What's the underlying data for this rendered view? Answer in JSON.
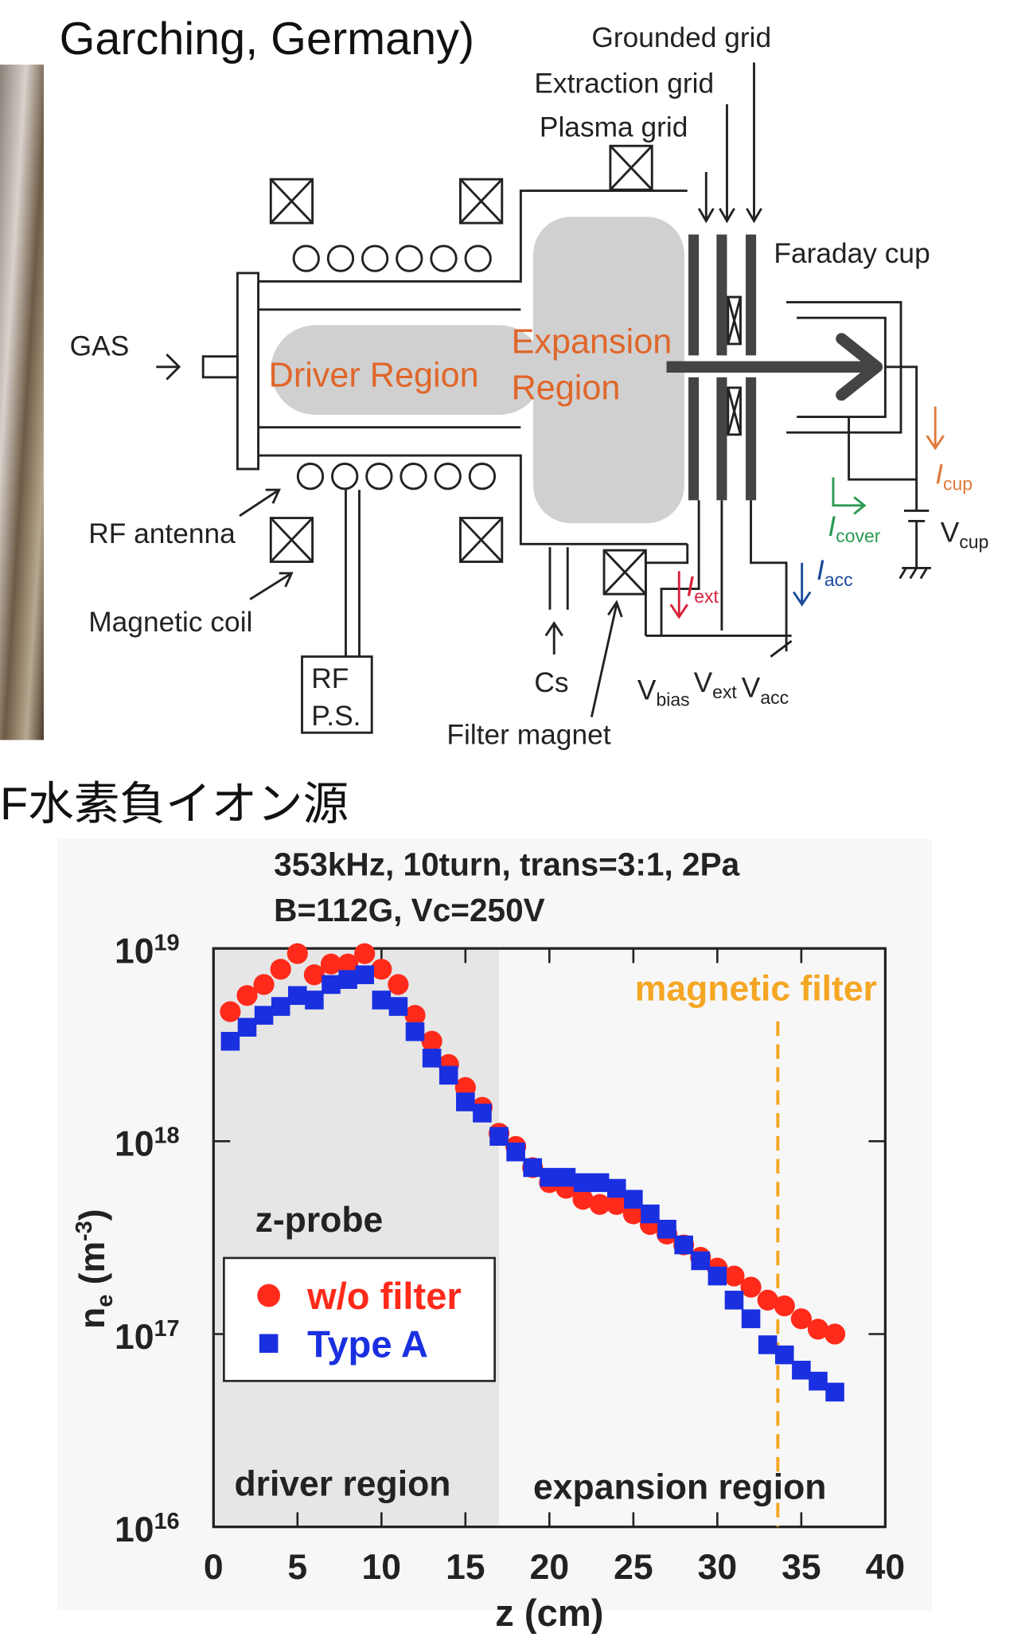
{
  "header": {
    "title": "Garching, Germany)",
    "caption": "F水素負イオン源"
  },
  "diagram": {
    "grounded_grid": "Grounded grid",
    "extraction_grid": "Extraction grid",
    "plasma_grid": "Plasma grid",
    "faraday_cup": "Faraday cup",
    "gas": "GAS",
    "expansion_1": "Expansion",
    "expansion_2": "Region",
    "driver_region": "Driver Region",
    "rf_antenna": "RF antenna",
    "magnetic_coil": "Magnetic coil",
    "rf_ps_1": "RF",
    "rf_ps_2": "P.S.",
    "cs": "Cs",
    "filter_magnet": "Filter magnet",
    "v_bias": "V_{bias}",
    "v_ext": "V_{ext}",
    "v_acc": "V_{acc}",
    "i_cup": "I_{cup}",
    "i_cover": "I_{cover}",
    "v_cup": "V_{cup}",
    "i_ext": "I_{ext}",
    "i_acc": "I_{acc}"
  },
  "chart_data": {
    "type": "scatter",
    "title": "353kHz, 10turn, trans=3:1, 2Pa",
    "subtitle": "B=112G, Vc=250V",
    "xlabel": "z (cm)",
    "ylabel": "n_{e} (m^{-3})",
    "log_y": true,
    "xlim": [
      0,
      40
    ],
    "xticks": [
      0,
      5,
      10,
      15,
      20,
      25,
      30,
      35,
      40
    ],
    "ylim": [
      1e+16,
      1e+19
    ],
    "yticks": [
      {
        "value": 1e+16,
        "label": "10^{16}"
      },
      {
        "value": 1e+17,
        "label": "10^{17}"
      },
      {
        "value": 1e+18,
        "label": "10^{18}"
      },
      {
        "value": 1e+19,
        "label": "10^{19}"
      }
    ],
    "legend": "lower-left",
    "driver_region_xlim": [
      0,
      17
    ],
    "filter_position": 33.6,
    "filter_color": "#f5a623",
    "annotations": {
      "filter": "magnetic filter",
      "probe": "z-probe",
      "driver": "driver region",
      "expansion": "expansion region"
    },
    "series": [
      {
        "name": "w/o filter",
        "color": "#ff2a1a",
        "marker": "circle",
        "x": [
          1,
          2,
          3,
          4,
          5,
          6,
          7,
          8,
          9,
          10,
          11,
          12,
          13,
          14,
          15,
          16,
          17,
          18,
          19,
          20,
          21,
          22,
          23,
          24,
          25,
          26,
          27,
          28,
          29,
          30,
          31,
          32,
          33,
          34,
          35,
          36,
          37
        ],
        "values": [
          4.7e+18,
          5.7e+18,
          6.5e+18,
          7.8e+18,
          9.4e+18,
          7.3e+18,
          8.3e+18,
          8.3e+18,
          9.4e+18,
          7.8e+18,
          6.5e+18,
          4.5e+18,
          3.3e+18,
          2.5e+18,
          1.9e+18,
          1.5e+18,
          1.1e+18,
          9.4e+17,
          7.3e+17,
          6.1e+17,
          5.7e+17,
          5e+17,
          4.7e+17,
          4.7e+17,
          4.2e+17,
          3.7e+17,
          3.3e+17,
          2.9e+17,
          2.5e+17,
          2.2e+17,
          2e+17,
          1.75e+17,
          1.5e+17,
          1.4e+17,
          1.2e+17,
          1.06e+17,
          1e+17
        ]
      },
      {
        "name": "Type A",
        "color": "#1a2fe0",
        "marker": "square",
        "x": [
          1,
          2,
          3,
          4,
          5,
          6,
          7,
          8,
          9,
          10,
          11,
          12,
          13,
          14,
          15,
          16,
          17,
          18,
          19,
          20,
          21,
          22,
          23,
          24,
          25,
          26,
          27,
          28,
          29,
          30,
          31,
          32,
          33,
          34,
          35,
          36,
          37
        ],
        "values": [
          3.3e+18,
          3.9e+18,
          4.5e+18,
          5e+18,
          5.7e+18,
          5.4e+18,
          6.5e+18,
          6.9e+18,
          7.3e+18,
          5.4e+18,
          5e+18,
          3.7e+18,
          2.7e+18,
          2.2e+18,
          1.6e+18,
          1.4e+18,
          1.06e+18,
          8.8e+17,
          7.3e+17,
          6.5e+17,
          6.5e+17,
          6.1e+17,
          6.1e+17,
          5.7e+17,
          5e+17,
          4.2e+17,
          3.5e+17,
          2.9e+17,
          2.4e+17,
          2e+17,
          1.5e+17,
          1.2e+17,
          8.8e+16,
          7.8e+16,
          6.5e+16,
          5.7e+16,
          5e+16
        ]
      }
    ]
  }
}
